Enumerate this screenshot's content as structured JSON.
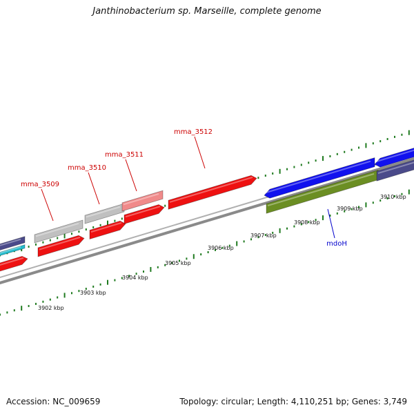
{
  "title": "Janthinobacterium sp. Marseille, complete genome",
  "footer": {
    "accession": "Accession: NC_009659",
    "summary": "Topology: circular; Length: 4,110,251 bp; Genes: 3,749"
  },
  "colors": {
    "backbone": "#8a8a8a",
    "ticks": "#1f7a1f",
    "gene_red": "#ee1111",
    "gene_gray": "#c0c0c0",
    "gene_pink": "#f08a8a",
    "gene_blue": "#1111ee",
    "gene_olive": "#6b8e23",
    "gene_slate": "#4a4a8a",
    "gene_cyan": "#22bbcc",
    "label_red": "#cc0000",
    "label_blue": "#0000cc"
  },
  "ruler_labels": [
    "3902 kbp",
    "3903 kbp",
    "3904 kbp",
    "3905 kbp",
    "3906 kbp",
    "3907 kbp",
    "3908 kbp",
    "3909 kbp",
    "3910 kbp"
  ],
  "gene_labels": [
    {
      "text": "mma_3509",
      "color": "red"
    },
    {
      "text": "mma_3510",
      "color": "red"
    },
    {
      "text": "mma_3511",
      "color": "red"
    },
    {
      "text": "mma_3512",
      "color": "red"
    },
    {
      "text": "mdoH",
      "color": "blue"
    }
  ]
}
